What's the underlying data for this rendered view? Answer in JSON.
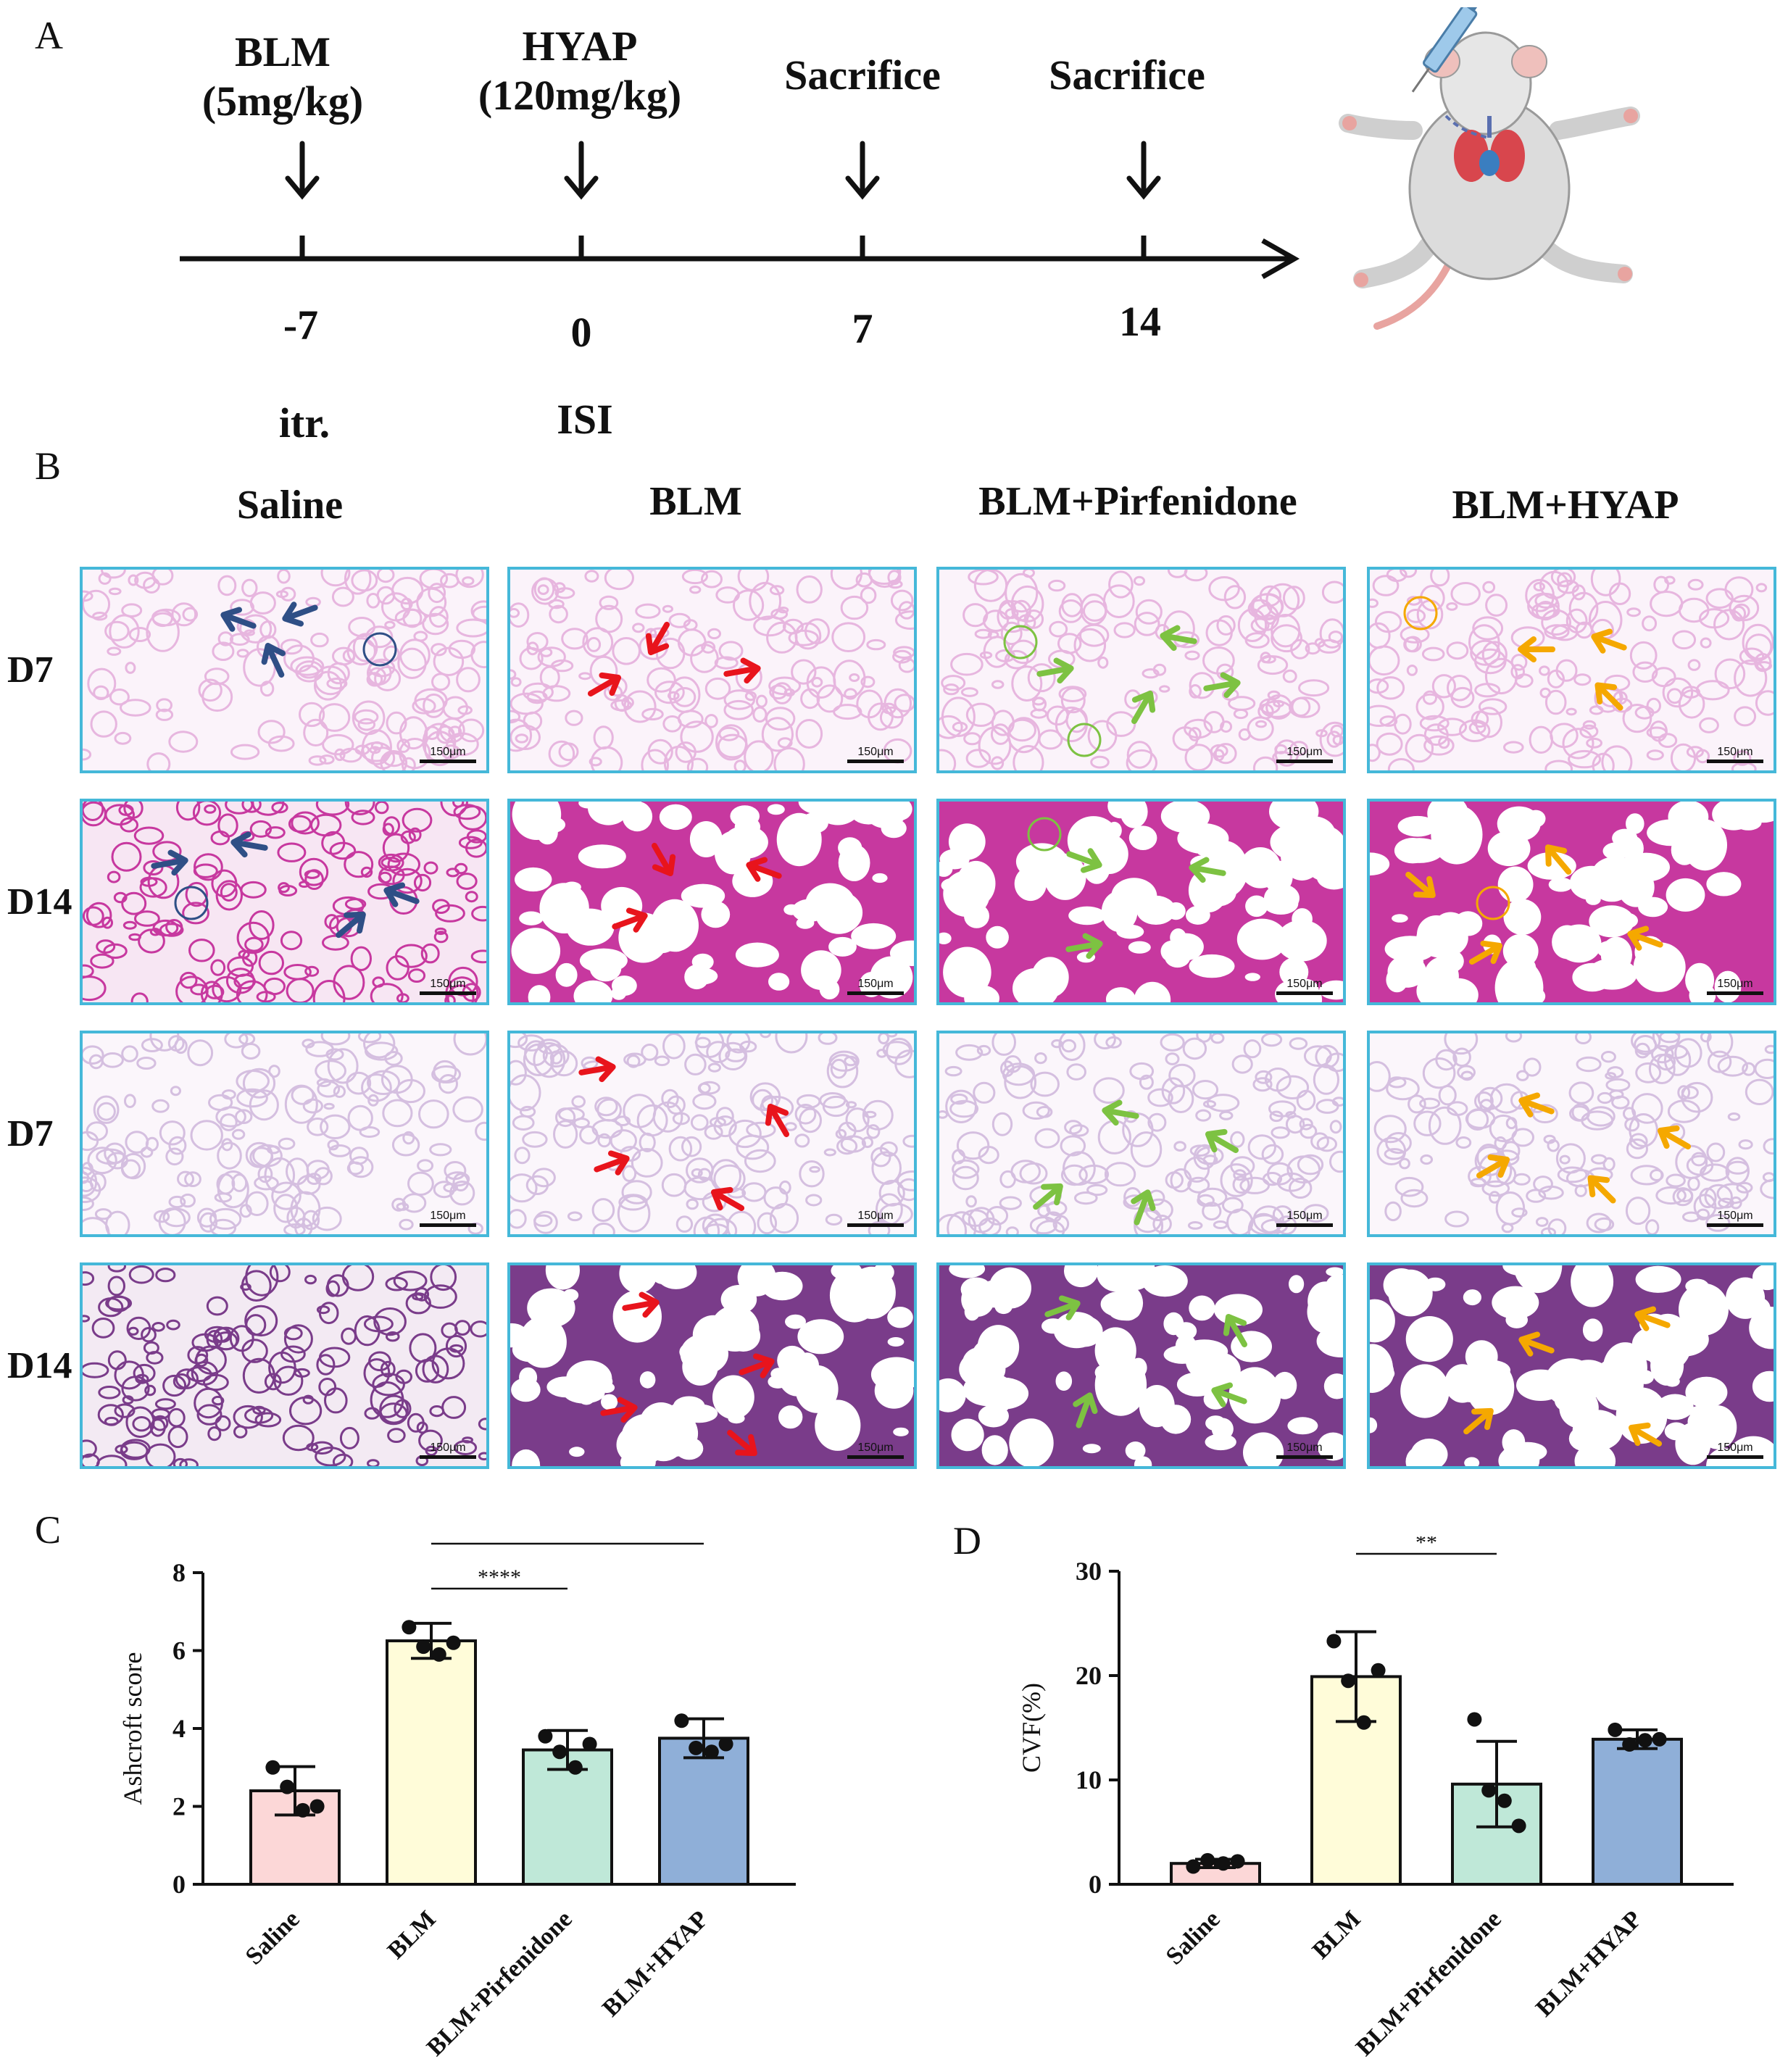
{
  "panels": {
    "a": "A",
    "b": "B",
    "c": "C",
    "d": "D"
  },
  "timeline": {
    "events": [
      {
        "label_lines": [
          "BLM",
          "(5mg/kg)"
        ],
        "day": "-7",
        "route": "itr."
      },
      {
        "label_lines": [
          "HYAP",
          "(120mg/kg)"
        ],
        "day": "0",
        "route": "ISI"
      },
      {
        "label_lines": [
          "Sacrifice"
        ],
        "day": "7",
        "route": ""
      },
      {
        "label_lines": [
          "Sacrifice"
        ],
        "day": "14",
        "route": ""
      }
    ]
  },
  "histology": {
    "columns": [
      "Saline",
      "BLM",
      "BLM+Pirfenidone",
      "BLM+HYAP"
    ],
    "rows": [
      "D7",
      "D14",
      "D7",
      "D14"
    ],
    "scale_bar": "150μm",
    "stain_colors": [
      "#e7b6df",
      "#c7389f",
      "#d5bfe0",
      "#7a3c8a"
    ],
    "arrow_colors": [
      "#2f4f86",
      "#e8141c",
      "#7dc242",
      "#f5a800"
    ]
  },
  "chart_data": [
    {
      "type": "bar",
      "panel": "C",
      "ylabel": "Ashcroft score",
      "ylim": [
        0,
        8
      ],
      "yticks": [
        0,
        2,
        4,
        6,
        8
      ],
      "categories": [
        "Saline",
        "BLM",
        "BLM+Pirfenidone",
        "BLM+HYAP"
      ],
      "values": [
        2.4,
        6.25,
        3.45,
        3.75
      ],
      "errors": [
        0.62,
        0.45,
        0.5,
        0.5
      ],
      "points": [
        [
          3.0,
          2.5,
          1.9,
          2.0
        ],
        [
          6.6,
          6.1,
          5.9,
          6.2
        ],
        [
          3.8,
          3.4,
          3.0,
          3.6
        ],
        [
          4.2,
          3.5,
          3.4,
          3.6
        ]
      ],
      "colors": [
        "#fcd7d7",
        "#fffcd9",
        "#bfe8d8",
        "#8fafd8"
      ],
      "significance": [
        {
          "from": 1,
          "to": 2,
          "label": "****"
        },
        {
          "from": 1,
          "to": 3,
          "label": "****"
        }
      ]
    },
    {
      "type": "bar",
      "panel": "D",
      "ylabel": "CVF(%)",
      "ylim": [
        0,
        30
      ],
      "yticks": [
        0,
        10,
        20,
        30
      ],
      "categories": [
        "Saline",
        "BLM",
        "BLM+Pirfenidone",
        "BLM+HYAP"
      ],
      "values": [
        2.0,
        19.9,
        9.6,
        13.9
      ],
      "errors": [
        0.4,
        4.3,
        4.1,
        0.9
      ],
      "points": [
        [
          1.7,
          2.3,
          2.0,
          2.2
        ],
        [
          23.3,
          19.5,
          15.5,
          20.5
        ],
        [
          15.8,
          9.0,
          8.0,
          5.6
        ],
        [
          14.8,
          13.4,
          13.8,
          13.9
        ]
      ],
      "colors": [
        "#fcd7d7",
        "#fffcd9",
        "#bfe8d8",
        "#8fafd8"
      ],
      "significance": [
        {
          "from": 1,
          "to": 2,
          "label": "**"
        }
      ]
    }
  ]
}
